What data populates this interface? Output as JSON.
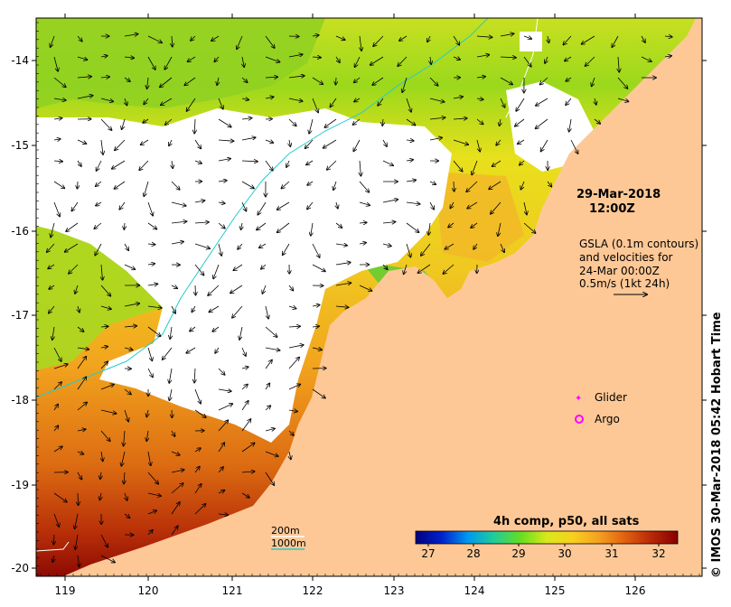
{
  "map": {
    "date": "29-Mar-2018",
    "time": "12:00Z",
    "gsla_lines": [
      "GSLA (0.1m contours)",
      "and velocities for",
      "24-Mar 00:00Z",
      "0.5m/s (1kt 24h)"
    ],
    "legend": {
      "glider": "Glider",
      "argo": "Argo"
    },
    "depth_legend": [
      "200m",
      "1000m"
    ],
    "credit": "© IMOS 30-Mar-2018 05:42 Hobart Time",
    "colorbar": {
      "title": "4h comp, p50, all sats",
      "ticks": [
        "27",
        "28",
        "29",
        "30",
        "31",
        "32"
      ],
      "stops": [
        "#00007f",
        "#0022cc",
        "#0099ee",
        "#22cc99",
        "#66dd22",
        "#d8e81a",
        "#f8d020",
        "#f4a020",
        "#e06010",
        "#b82808",
        "#880000"
      ]
    },
    "x_ticks": [
      "119",
      "120",
      "121",
      "122",
      "123",
      "124",
      "125",
      "126"
    ],
    "y_ticks": [
      "-14",
      "-15",
      "-16",
      "-17",
      "-18",
      "-19",
      "-20"
    ],
    "colors": {
      "land": "#fdc896",
      "no_data": "#ffffff",
      "contour_200m": "#ffffff",
      "contour_1000m": "#22cccc",
      "glider": "#ff00ff",
      "argo": "#ff00ff"
    }
  }
}
